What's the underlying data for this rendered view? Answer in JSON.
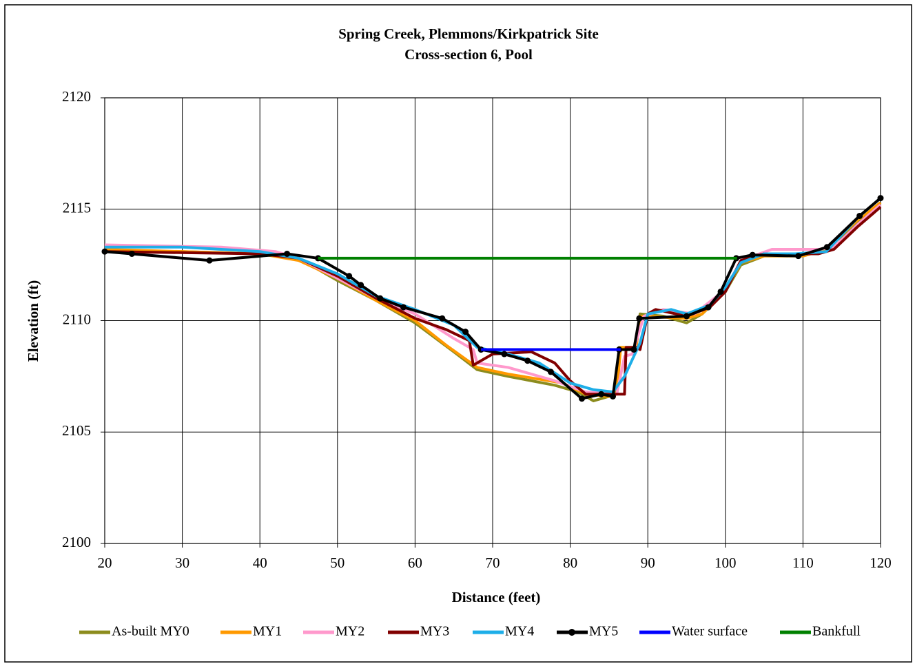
{
  "chart_data": {
    "type": "line",
    "title": "Spring Creek, Plemmons/Kirkpatrick Site",
    "subtitle": "Cross-section 6, Pool",
    "x_label": "Distance (feet)",
    "y_label": "Elevation (ft)",
    "xlim": [
      20,
      120
    ],
    "xticks": [
      20,
      30,
      40,
      50,
      60,
      70,
      80,
      90,
      100,
      110,
      120
    ],
    "ylim": [
      2100,
      2120
    ],
    "yticks": [
      2100,
      2105,
      2110,
      2115,
      2120
    ],
    "grid": true,
    "legend": "bottom",
    "series": [
      {
        "name": "As-built MY0",
        "color": "#8c8c1e",
        "x": [
          20,
          30,
          40,
          45,
          50,
          55,
          60,
          65,
          68,
          72,
          78,
          81,
          83,
          85,
          86,
          86.3,
          88.5,
          89,
          92,
          95,
          97,
          100,
          102,
          105,
          110,
          113,
          117,
          120
        ],
        "values": [
          2113.1,
          2113.1,
          2113,
          2112.8,
          2111.8,
          2110.9,
          2109.9,
          2108.6,
          2107.8,
          2107.5,
          2107.1,
          2106.8,
          2106.4,
          2106.6,
          2106.8,
          2108.8,
          2108.8,
          2110.3,
          2110.2,
          2109.9,
          2110.3,
          2111.3,
          2112.5,
          2112.9,
          2112.9,
          2113.2,
          2114.4,
          2115.3
        ]
      },
      {
        "name": "MY1",
        "color": "#ff9900",
        "x": [
          20,
          40,
          45,
          50,
          55,
          60,
          64,
          68,
          72,
          79,
          82,
          85,
          86,
          86.5,
          88.5,
          89,
          95,
          97,
          100,
          102,
          105,
          110,
          113,
          117,
          120
        ],
        "values": [
          2113.2,
          2113,
          2112.7,
          2111.9,
          2110.9,
          2110,
          2108.9,
          2107.9,
          2107.6,
          2107.2,
          2106.7,
          2106.6,
          2106.7,
          2108.8,
          2108.8,
          2110.2,
          2110.1,
          2110.3,
          2111.4,
          2112.6,
          2112.9,
          2112.9,
          2113.2,
          2114.5,
          2115.3
        ]
      },
      {
        "name": "MY2",
        "color": "#ff99cc",
        "x": [
          20,
          35,
          42,
          45,
          50,
          55,
          60,
          65,
          67.5,
          68,
          72,
          78,
          82,
          86,
          87,
          88,
          89.5,
          92,
          96,
          100,
          102,
          106,
          112,
          114,
          117,
          120
        ],
        "values": [
          2113.4,
          2113.3,
          2113.1,
          2112.8,
          2111.9,
          2111,
          2110.3,
          2109.2,
          2108.7,
          2108.1,
          2107.9,
          2107.3,
          2106.8,
          2106.7,
          2108.4,
          2108.5,
          2110.2,
          2110.5,
          2110.3,
          2111.4,
          2112.7,
          2113.2,
          2113.2,
          2113.3,
          2114.3,
          2115.2
        ]
      },
      {
        "name": "MY3",
        "color": "#800000",
        "x": [
          20,
          40,
          45,
          50,
          55,
          60,
          64,
          67,
          67.5,
          70,
          75,
          78,
          80,
          82,
          85,
          87,
          87.2,
          88.5,
          89,
          90,
          91,
          95,
          98,
          100,
          102,
          105,
          112,
          114,
          117,
          120
        ],
        "values": [
          2113.1,
          2113,
          2112.8,
          2112,
          2111,
          2110.1,
          2109.6,
          2109.1,
          2108,
          2108.5,
          2108.6,
          2108.1,
          2107.3,
          2106.7,
          2106.7,
          2106.7,
          2108.8,
          2108.8,
          2108.7,
          2110.3,
          2110.5,
          2110.2,
          2110.6,
          2111.3,
          2112.7,
          2113,
          2113,
          2113.2,
          2114.2,
          2115.1
        ]
      },
      {
        "name": "MY4",
        "color": "#1eaee8",
        "x": [
          20,
          30,
          40,
          45,
          50,
          55,
          60,
          65,
          68,
          72,
          76,
          80,
          83,
          85.5,
          87,
          89,
          90,
          93,
          95,
          98,
          100,
          102,
          105,
          109,
          113,
          117,
          120
        ],
        "values": [
          2113.3,
          2113.3,
          2113.1,
          2112.8,
          2112.1,
          2111.1,
          2110.5,
          2109.8,
          2108.8,
          2108.5,
          2108.1,
          2107.2,
          2106.9,
          2106.8,
          2107.5,
          2109,
          2110.3,
          2110.5,
          2110.3,
          2110.7,
          2111.5,
          2112.6,
          2113,
          2113,
          2113.1,
          2114.6,
          2115.5
        ]
      },
      {
        "name": "MY5",
        "color": "#000000",
        "markers": true,
        "x": [
          20,
          23.5,
          33.5,
          43.5,
          47.5,
          51.5,
          53,
          55.5,
          58.5,
          63.5,
          66.5,
          68.5,
          71.5,
          74.5,
          77.5,
          81.5,
          84,
          85.5,
          86.3,
          88.2,
          88.9,
          95,
          97.8,
          99.4,
          101.4,
          103.5,
          109.4,
          113.1,
          117.3,
          120
        ],
        "values": [
          2113.1,
          2113,
          2112.7,
          2113,
          2112.8,
          2112,
          2111.6,
          2111,
          2110.6,
          2110.1,
          2109.5,
          2108.7,
          2108.5,
          2108.2,
          2107.7,
          2106.5,
          2106.7,
          2106.6,
          2108.7,
          2108.7,
          2110.1,
          2110.2,
          2110.6,
          2111.3,
          2112.8,
          2112.95,
          2112.9,
          2113.3,
          2114.7,
          2115.5
        ]
      },
      {
        "name": "Water surface",
        "color": "#0000ff",
        "x": [
          68.5,
          86.5
        ],
        "values": [
          2108.7,
          2108.7
        ]
      },
      {
        "name": "Bankfull",
        "color": "#008000",
        "x": [
          47.5,
          101.5
        ],
        "values": [
          2112.8,
          2112.8
        ]
      }
    ]
  }
}
